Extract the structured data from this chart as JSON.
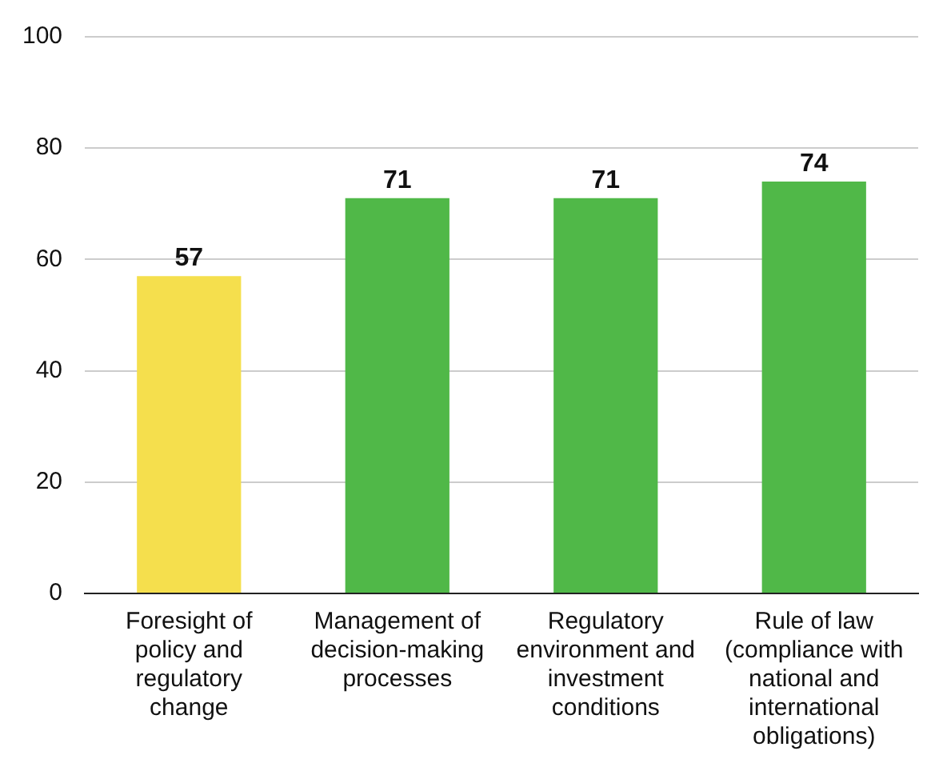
{
  "chart_data": {
    "type": "bar",
    "categories": [
      "Foresight of policy and regulatory change",
      "Management of decision-making processes",
      "Regulatory environment and investment conditions",
      "Rule of law (compliance with national and international obligations)"
    ],
    "values": [
      57,
      71,
      71,
      74
    ],
    "colors": [
      "#f5df4d",
      "#50b848",
      "#50b848",
      "#50b848"
    ],
    "ylim": [
      0,
      100
    ],
    "yticks": [
      0,
      20,
      40,
      60,
      80,
      100
    ],
    "grid": "y",
    "data_labels": true
  }
}
